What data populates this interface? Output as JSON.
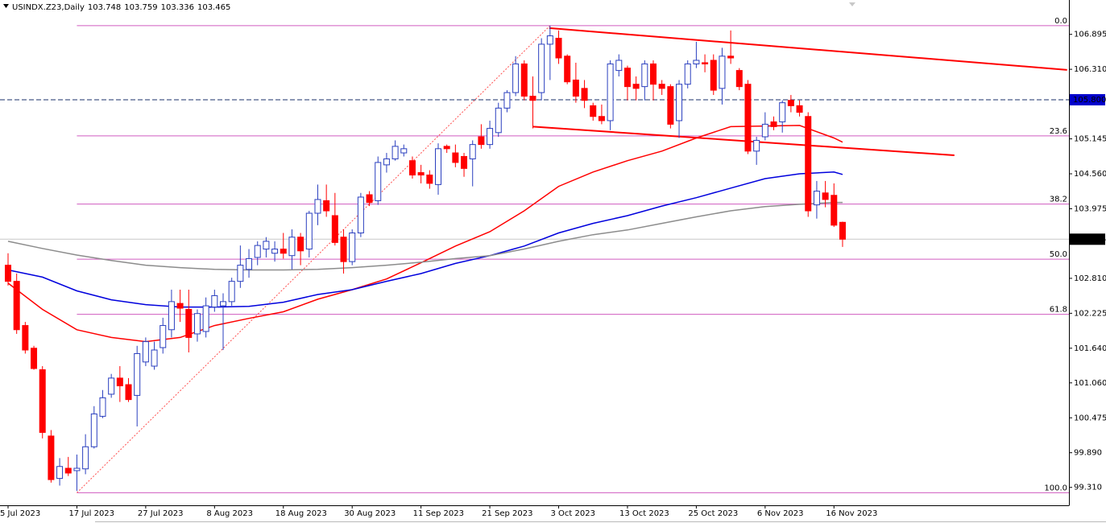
{
  "chart_data": {
    "type": "candlestick",
    "title": "USINDX.Z23,Daily",
    "categories": [
      "5 Jul 2023",
      null,
      null,
      null,
      null,
      null,
      null,
      null,
      "17 Jul 2023",
      null,
      null,
      null,
      null,
      null,
      null,
      null,
      "27 Jul 2023",
      null,
      null,
      null,
      null,
      null,
      null,
      null,
      "8 Aug 2023",
      null,
      null,
      null,
      null,
      null,
      null,
      null,
      "18 Aug 2023",
      null,
      null,
      null,
      null,
      null,
      null,
      null,
      "30 Aug 2023",
      null,
      null,
      null,
      null,
      null,
      null,
      null,
      "11 Sep 2023",
      null,
      null,
      null,
      null,
      null,
      null,
      null,
      "21 Sep 2023",
      null,
      null,
      null,
      null,
      null,
      null,
      null,
      "3 Oct 2023",
      null,
      null,
      null,
      null,
      null,
      null,
      null,
      "13 Oct 2023",
      null,
      null,
      null,
      null,
      null,
      null,
      null,
      "25 Oct 2023",
      null,
      null,
      null,
      null,
      null,
      null,
      null,
      "6 Nov 2023",
      null,
      null,
      null,
      null,
      null,
      null,
      null,
      "16 Nov 2023",
      null
    ],
    "open": [
      103.03,
      102.76,
      102.02,
      101.64,
      101.28,
      100.17,
      99.46,
      99.63,
      99.59,
      99.62,
      99.99,
      100.5,
      100.87,
      101.14,
      101.03,
      100.85,
      101.41,
      101.34,
      101.65,
      101.95,
      102.39,
      102.29,
      101.88,
      101.92,
      102.33,
      102.35,
      102.42,
      102.76,
      102.96,
      103.16,
      103.3,
      103.23,
      103.3,
      103.19,
      103.5,
      103.3,
      103.9,
      104.11,
      103.86,
      103.5,
      103.09,
      103.57,
      104.21,
      104.11,
      104.71,
      104.81,
      104.91,
      104.78,
      104.58,
      104.54,
      104.38,
      105.02,
      104.91,
      104.85,
      104.81,
      105.18,
      105.05,
      105.25,
      105.66,
      105.92,
      106.4,
      105.86,
      105.92,
      106.73,
      106.83,
      106.53,
      106.13,
      105.99,
      105.7,
      105.52,
      105.45,
      106.29,
      106.33,
      106.06,
      106.02,
      106.4,
      106.06,
      106.02,
      105.45,
      106.06,
      106.4,
      106.42,
      106.46,
      105.99,
      106.53,
      106.29,
      106.06,
      104.94,
      105.18,
      105.43,
      105.43,
      105.79,
      105.7,
      105.52,
      104.04,
      104.24,
      104.2,
      103.748
    ],
    "high": [
      103.23,
      102.89,
      102.08,
      101.68,
      101.34,
      100.27,
      99.8,
      99.82,
      99.86,
      100.2,
      100.67,
      100.94,
      101.21,
      101.34,
      101.14,
      101.68,
      101.82,
      101.75,
      102.15,
      102.62,
      102.62,
      102.62,
      102.29,
      102.49,
      102.62,
      102.56,
      102.82,
      103.36,
      103.3,
      103.43,
      103.5,
      103.43,
      103.57,
      103.63,
      103.57,
      103.94,
      104.38,
      104.38,
      104.24,
      103.63,
      103.63,
      104.24,
      104.27,
      104.85,
      104.91,
      105.12,
      105.05,
      104.85,
      104.71,
      104.62,
      105.07,
      105.05,
      105.05,
      104.91,
      105.12,
      105.39,
      105.45,
      105.75,
      105.96,
      106.53,
      106.46,
      106.19,
      106.83,
      107.04,
      106.96,
      106.56,
      106.42,
      106.13,
      105.75,
      105.72,
      106.46,
      106.56,
      106.37,
      106.19,
      106.46,
      106.46,
      106.13,
      106.06,
      106.13,
      106.46,
      106.77,
      106.56,
      106.56,
      106.67,
      106.96,
      106.33,
      106.13,
      105.18,
      105.59,
      105.52,
      105.79,
      105.88,
      105.79,
      105.59,
      104.44,
      104.44,
      104.4,
      103.759
    ],
    "low": [
      102.69,
      101.88,
      101.55,
      101.28,
      100.13,
      99.39,
      99.34,
      99.5,
      99.25,
      99.53,
      99.96,
      100.47,
      100.81,
      100.74,
      100.74,
      100.33,
      101.34,
      101.28,
      101.55,
      101.82,
      102.08,
      101.57,
      101.75,
      101.82,
      102.25,
      101.61,
      102.35,
      102.65,
      102.82,
      103.03,
      103.16,
      103.09,
      103.14,
      102.96,
      103.03,
      103.16,
      103.7,
      103.84,
      103.36,
      102.89,
      103.03,
      103.5,
      104.02,
      104.04,
      104.58,
      104.78,
      104.85,
      104.48,
      104.4,
      104.31,
      104.21,
      104.91,
      104.67,
      104.51,
      104.35,
      104.98,
      104.98,
      105.18,
      105.59,
      105.86,
      105.79,
      105.32,
      105.79,
      106.13,
      106.4,
      106.06,
      105.75,
      105.66,
      105.45,
      105.39,
      105.29,
      106.19,
      105.79,
      105.79,
      105.79,
      105.79,
      105.88,
      105.32,
      105.16,
      105.99,
      106.33,
      106.26,
      105.88,
      105.72,
      106.4,
      105.96,
      104.89,
      104.71,
      105.12,
      105.29,
      105.25,
      105.59,
      105.52,
      103.84,
      103.81,
      104.0,
      103.67,
      103.336
    ],
    "close": [
      102.76,
      101.95,
      101.61,
      101.3,
      100.23,
      99.44,
      99.66,
      99.55,
      99.63,
      99.99,
      100.54,
      100.81,
      101.14,
      101.01,
      100.78,
      101.55,
      101.75,
      101.61,
      102.02,
      102.42,
      102.31,
      101.82,
      102.22,
      102.35,
      102.52,
      102.42,
      102.76,
      103.03,
      103.14,
      103.36,
      103.43,
      103.3,
      103.23,
      103.5,
      103.27,
      103.9,
      104.13,
      103.94,
      103.41,
      103.09,
      103.57,
      104.17,
      104.08,
      104.75,
      104.81,
      105.02,
      104.98,
      104.54,
      104.54,
      104.4,
      104.98,
      104.98,
      104.75,
      104.65,
      105.05,
      105.05,
      105.32,
      105.66,
      105.92,
      106.4,
      105.86,
      105.79,
      106.73,
      106.87,
      106.5,
      106.1,
      105.86,
      105.79,
      105.52,
      105.45,
      106.4,
      106.46,
      106.02,
      105.99,
      106.4,
      106.06,
      105.99,
      105.39,
      106.06,
      106.4,
      106.46,
      106.4,
      105.96,
      106.53,
      106.5,
      106.02,
      104.94,
      105.12,
      105.39,
      105.35,
      105.75,
      105.7,
      105.59,
      103.94,
      104.27,
      104.13,
      103.7,
      103.465
    ],
    "up_color": "#ffffff",
    "up_border": "#2a3fbf",
    "down_color": "#ff0000",
    "ylim": [
      99.01,
      107.47
    ],
    "yticks": [
      106.895,
      {
        "value": 106.31,
        "label": "106.310"
      },
      105.145,
      {
        "value": 104.56,
        "label": "104.560"
      },
      103.975,
      {
        "value": 102.81,
        "label": "102.810"
      },
      102.225,
      {
        "value": 101.64,
        "label": "101.640"
      },
      {
        "value": 101.06,
        "label": "101.060"
      },
      100.475,
      {
        "value": 99.89,
        "label": "99.890"
      },
      {
        "value": 99.31,
        "label": "99.310"
      }
    ],
    "grid": false,
    "moving_averages": [
      {
        "color": "#ff0000",
        "x": [
          0,
          4,
          8,
          12,
          16,
          20,
          24,
          28,
          32,
          36,
          40,
          44,
          48,
          52,
          56,
          60,
          64,
          68,
          72,
          76,
          80,
          84,
          88,
          92,
          96,
          97
        ],
        "values": [
          102.73,
          102.29,
          101.95,
          101.82,
          101.75,
          101.82,
          102.02,
          102.14,
          102.25,
          102.46,
          102.62,
          102.8,
          103.07,
          103.35,
          103.59,
          103.94,
          104.35,
          104.59,
          104.78,
          104.94,
          105.16,
          105.35,
          105.36,
          105.37,
          105.16,
          105.09
        ]
      },
      {
        "color": "#0000dd",
        "x": [
          0,
          4,
          8,
          12,
          16,
          20,
          24,
          28,
          32,
          36,
          40,
          44,
          48,
          52,
          56,
          60,
          64,
          68,
          72,
          76,
          80,
          84,
          88,
          92,
          96,
          97
        ],
        "values": [
          102.95,
          102.83,
          102.6,
          102.45,
          102.37,
          102.33,
          102.33,
          102.34,
          102.41,
          102.54,
          102.62,
          102.76,
          102.89,
          103.06,
          103.19,
          103.35,
          103.57,
          103.73,
          103.86,
          104.02,
          104.16,
          104.32,
          104.48,
          104.56,
          104.59,
          104.55
        ]
      },
      {
        "color": "#8c8c8c",
        "x": [
          0,
          4,
          8,
          12,
          16,
          20,
          24,
          28,
          32,
          36,
          40,
          44,
          48,
          52,
          56,
          60,
          64,
          68,
          72,
          76,
          80,
          84,
          88,
          92,
          96,
          97
        ],
        "values": [
          103.43,
          103.31,
          103.2,
          103.11,
          103.03,
          102.99,
          102.96,
          102.95,
          102.95,
          102.96,
          102.99,
          103.03,
          103.08,
          103.14,
          103.19,
          103.3,
          103.43,
          103.54,
          103.62,
          103.73,
          103.84,
          103.94,
          104.01,
          104.05,
          104.08,
          104.08
        ]
      }
    ],
    "trendlines": [
      {
        "color": "#ff0000",
        "x": [
          62.9,
          123.1
        ],
        "values": [
          107.0,
          106.3
        ]
      },
      {
        "color": "#ff0000",
        "x": [
          61.0,
          110.0
        ],
        "values": [
          105.35,
          104.87
        ]
      }
    ],
    "fibonacci": {
      "color": "#d05cc0",
      "high": 107.04,
      "low": 99.22,
      "x": [
        8,
        63
      ],
      "levels": [
        {
          "value": 0,
          "label": "0.0"
        },
        23.6,
        38.2,
        {
          "value": 50,
          "label": "50.0"
        },
        61.8,
        {
          "value": 100,
          "label": "100.0"
        }
      ]
    },
    "hline": {
      "value": 105.8,
      "label": "105.800",
      "color": "#1a2f6a",
      "tag_color": "#0000cc"
    }
  }
}
